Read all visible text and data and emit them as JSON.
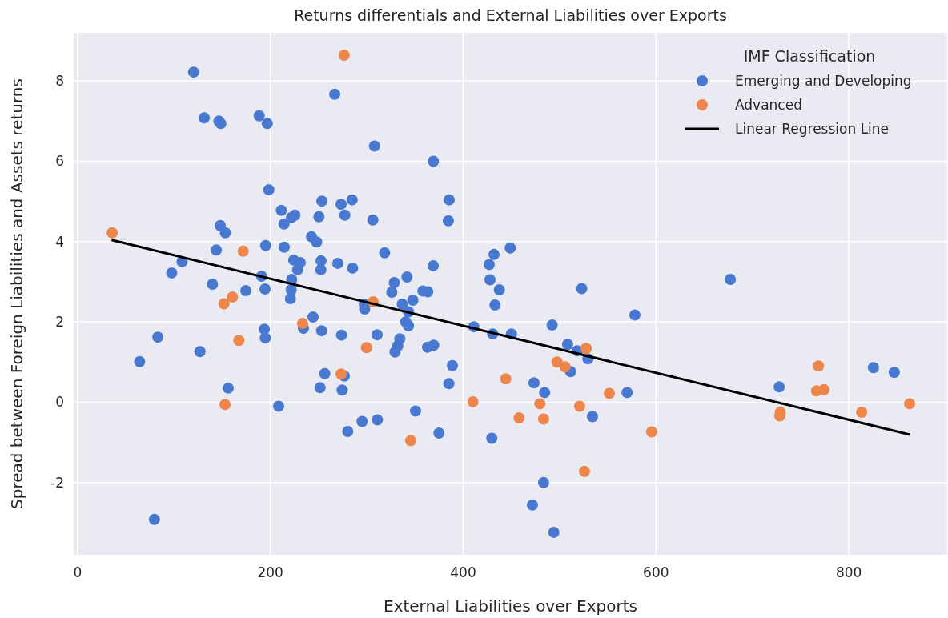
{
  "chart_data": {
    "type": "scatter",
    "title": "Returns differentials and External Liabilities over Exports",
    "xlabel": "External Liabilities over Exports",
    "ylabel": "Spread between Foreign Liabilities and Assets returns",
    "legend_title": "IMF Classification",
    "legend": "top right",
    "grid": true,
    "marker": "circle",
    "xlim": [
      -4,
      902
    ],
    "ylim": [
      -3.8,
      9.2
    ],
    "xticks": [
      0,
      200,
      400,
      600,
      800
    ],
    "yticks": [
      -2,
      0,
      2,
      4,
      6,
      8
    ],
    "series": [
      {
        "name": "Emerging and Developing",
        "color": "#4878d0",
        "x": [
          120.4,
          131.4,
          146.6,
          148.6,
          188.4,
          196.8,
          198.4,
          211.4,
          225.5,
          221.9,
          214.2,
          148,
          153.3,
          143.9,
          195.1,
          214.4,
          242.7,
          108.4,
          97.7,
          140,
          190.9,
          224.2,
          231,
          228.3,
          222.2,
          174.6,
          194.5,
          221.6,
          220.8,
          244.3,
          234.3,
          83.3,
          64.4,
          127,
          193.7,
          194.8,
          156.3,
          208.6,
          79.7,
          266.8,
          308,
          369.1,
          253.5,
          273.4,
          284.8,
          250.4,
          277.3,
          306.3,
          385.5,
          384.6,
          248,
          252.6,
          252.4,
          270,
          285.3,
          318.5,
          368.9,
          328.5,
          341.7,
          326,
          358.3,
          363.3,
          432,
          448.8,
          427,
          427.8,
          437.5,
          433,
          297.5,
          297.8,
          336.8,
          347.8,
          343.2,
          340.4,
          343.2,
          253.2,
          273.9,
          310.7,
          334.3,
          332.1,
          329.3,
          363,
          369.4,
          388.8,
          385.2,
          411,
          430.6,
          450,
          256.5,
          276.7,
          251.6,
          274.5,
          473.5,
          350.6,
          311,
          295.2,
          280.3,
          374.9,
          429.7,
          483.4,
          471.8,
          523,
          677.1,
          578.1,
          492.3,
          508.3,
          518.3,
          529.4,
          511.4,
          484.5,
          570,
          534.1,
          494,
          727.8,
          825.5,
          847.1
        ],
        "values": [
          8.22,
          7.08,
          7.0,
          6.94,
          7.13,
          6.94,
          5.29,
          4.78,
          4.66,
          4.6,
          4.44,
          4.4,
          4.22,
          3.79,
          3.9,
          3.86,
          4.12,
          3.5,
          3.22,
          2.94,
          3.14,
          3.54,
          3.48,
          3.3,
          3.06,
          2.78,
          2.82,
          2.8,
          2.58,
          2.12,
          1.84,
          1.62,
          1.01,
          1.26,
          1.82,
          1.6,
          0.35,
          -0.1,
          -2.92,
          7.67,
          6.38,
          6.0,
          5.01,
          4.93,
          5.04,
          4.62,
          4.66,
          4.54,
          5.04,
          4.52,
          3.99,
          3.52,
          3.3,
          3.46,
          3.34,
          3.72,
          3.4,
          2.98,
          3.12,
          2.74,
          2.77,
          2.75,
          3.68,
          3.84,
          3.43,
          3.05,
          2.8,
          2.42,
          2.44,
          2.32,
          2.44,
          2.54,
          2.25,
          2.0,
          1.9,
          1.78,
          1.67,
          1.68,
          1.58,
          1.4,
          1.25,
          1.37,
          1.42,
          0.91,
          0.46,
          1.88,
          1.7,
          1.7,
          0.71,
          0.65,
          0.36,
          0.3,
          0.48,
          -0.22,
          -0.44,
          -0.48,
          -0.73,
          -0.77,
          -0.9,
          -2.0,
          -2.56,
          2.83,
          3.06,
          2.17,
          1.92,
          1.44,
          1.28,
          1.08,
          0.76,
          0.24,
          0.24,
          -0.36,
          -3.24,
          0.38,
          0.86,
          0.74
        ]
      },
      {
        "name": "Advanced",
        "color": "#ee854a",
        "x": [
          36,
          171.8,
          160.7,
          151.9,
          233.5,
          167.4,
          153,
          276.5,
          306.6,
          299.7,
          273.4,
          444.2,
          410.1,
          479.5,
          458,
          483.4,
          345.6,
          527.5,
          497.3,
          505.6,
          551.5,
          520.8,
          595.5,
          525.8,
          728.9,
          728.4,
          768.5,
          766.5,
          774.3,
          813.3,
          863
        ],
        "values": [
          4.22,
          3.76,
          2.62,
          2.45,
          1.96,
          1.54,
          -0.06,
          8.64,
          2.5,
          1.36,
          0.7,
          0.58,
          0.01,
          -0.04,
          -0.39,
          -0.42,
          -0.96,
          1.34,
          1.0,
          0.88,
          0.22,
          -0.1,
          -0.74,
          -1.72,
          -0.25,
          -0.34,
          0.9,
          0.28,
          0.31,
          -0.25,
          -0.04
        ]
      },
      {
        "name": "Linear Regression Line",
        "type": "line",
        "color": "#000000",
        "marker": "none",
        "x": [
          35.4,
          863.4
        ],
        "values": [
          4.04,
          -0.81
        ]
      }
    ]
  }
}
